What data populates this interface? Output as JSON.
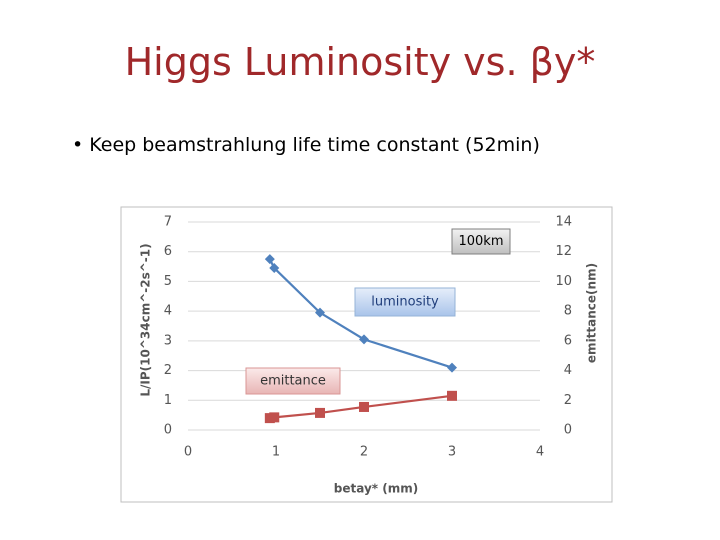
{
  "slide": {
    "title": "Higgs Luminosity vs. βy*",
    "bullet": "Keep beamstrahlung life time constant (52min)"
  },
  "chart_data": {
    "type": "line",
    "x": [
      0.93,
      0.98,
      1.5,
      2,
      3
    ],
    "series": [
      {
        "name": "luminosity",
        "color": "#4f81bd",
        "values": [
          5.75,
          5.45,
          3.95,
          3.05,
          2.1
        ]
      },
      {
        "name": "emittance",
        "color": "#c0504d",
        "axis": "y2",
        "values": [
          0.8,
          0.85,
          1.15,
          1.55,
          2.3
        ]
      }
    ],
    "xlabel": "betay* (mm)",
    "ylabel": "L/IP(10^34cm^-2s^-1)",
    "y2label": "emittance(nm)",
    "xlim": [
      0,
      4
    ],
    "xticks": [
      0,
      1,
      2,
      3,
      4
    ],
    "ylim": [
      0,
      7
    ],
    "yticks": [
      0,
      1,
      2,
      3,
      4,
      5,
      6,
      7
    ],
    "y2lim": [
      0,
      14
    ],
    "y2ticks": [
      0,
      2,
      4,
      6,
      8,
      10,
      12,
      14
    ],
    "grid": true,
    "annotations": [
      "100km"
    ]
  }
}
